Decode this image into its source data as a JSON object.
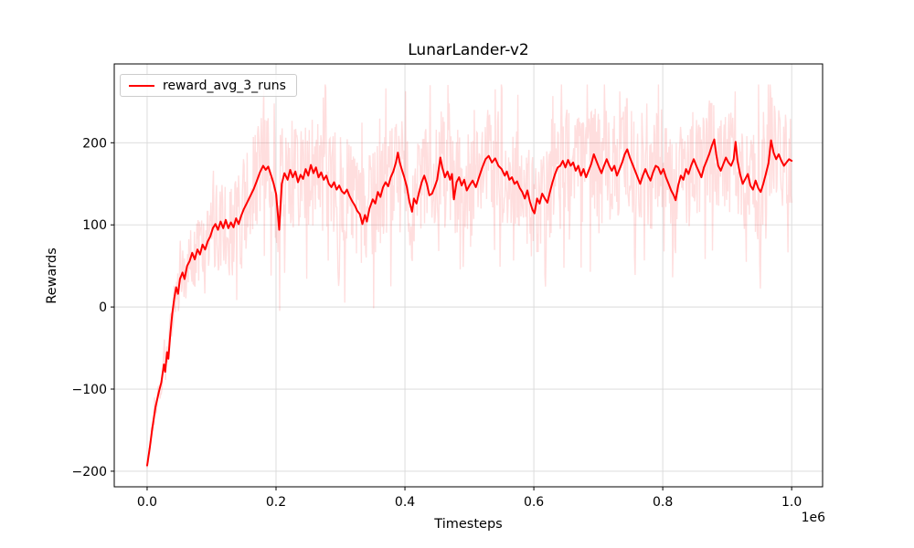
{
  "chart_data": {
    "type": "line",
    "title": "LunarLander-v2",
    "xlabel": "Timesteps",
    "ylabel": "Rewards",
    "x_offset_label": "1e6",
    "legend": [
      "reward_avg_3_runs"
    ],
    "legend_position": "upper left",
    "grid": true,
    "xlim": [
      -51000,
      1048000
    ],
    "ylim": [
      -219,
      296
    ],
    "xticks": {
      "values": [
        0,
        200000,
        400000,
        600000,
        800000,
        1000000
      ],
      "labels": [
        "0.0",
        "0.2",
        "0.4",
        "0.6",
        "0.8",
        "1.0"
      ]
    },
    "yticks": {
      "values": [
        -200,
        -100,
        0,
        100,
        200
      ],
      "labels": [
        "−200",
        "−100",
        "0",
        "100",
        "200"
      ]
    },
    "colors": {
      "line": "#ff0000",
      "raw_band": "rgba(255,0,0,0.13)",
      "grid": "#d9d9d9",
      "spine": "#000000",
      "text": "#000000",
      "legend_border": "#cccccc",
      "background": "#ffffff"
    },
    "raw_noise": {
      "seed": 13,
      "n_points": 1050,
      "base_amplitude": 6,
      "max_amplitude": 66,
      "amp_ramp_end_x": 140000,
      "spike_probability": 0.07,
      "spike_scale": 1.45,
      "clip_min": -196,
      "clip_max": 271
    },
    "series": [
      {
        "name": "reward_avg_3_runs",
        "color": "#ff0000",
        "points": [
          [
            0,
            -193
          ],
          [
            4000,
            -172
          ],
          [
            8000,
            -148
          ],
          [
            13000,
            -122
          ],
          [
            18000,
            -104
          ],
          [
            22000,
            -92
          ],
          [
            26000,
            -70
          ],
          [
            28000,
            -79
          ],
          [
            31000,
            -55
          ],
          [
            33000,
            -63
          ],
          [
            36000,
            -32
          ],
          [
            39000,
            -8
          ],
          [
            42000,
            10
          ],
          [
            45000,
            24
          ],
          [
            48000,
            16
          ],
          [
            51000,
            34
          ],
          [
            55000,
            42
          ],
          [
            58000,
            34
          ],
          [
            62000,
            50
          ],
          [
            66000,
            56
          ],
          [
            70000,
            66
          ],
          [
            74000,
            58
          ],
          [
            78000,
            70
          ],
          [
            82000,
            64
          ],
          [
            86000,
            76
          ],
          [
            90000,
            70
          ],
          [
            94000,
            80
          ],
          [
            98000,
            86
          ],
          [
            102000,
            96
          ],
          [
            106000,
            101
          ],
          [
            110000,
            94
          ],
          [
            114000,
            104
          ],
          [
            118000,
            96
          ],
          [
            122000,
            106
          ],
          [
            126000,
            96
          ],
          [
            130000,
            103
          ],
          [
            134000,
            97
          ],
          [
            138000,
            108
          ],
          [
            142000,
            101
          ],
          [
            146000,
            111
          ],
          [
            150000,
            119
          ],
          [
            155000,
            127
          ],
          [
            160000,
            135
          ],
          [
            165000,
            143
          ],
          [
            170000,
            153
          ],
          [
            175000,
            164
          ],
          [
            180000,
            172
          ],
          [
            184000,
            167
          ],
          [
            188000,
            171
          ],
          [
            192000,
            161
          ],
          [
            196000,
            151
          ],
          [
            200000,
            138
          ],
          [
            205000,
            94
          ],
          [
            209000,
            150
          ],
          [
            213000,
            163
          ],
          [
            218000,
            155
          ],
          [
            222000,
            167
          ],
          [
            226000,
            158
          ],
          [
            230000,
            165
          ],
          [
            234000,
            152
          ],
          [
            238000,
            161
          ],
          [
            242000,
            156
          ],
          [
            246000,
            168
          ],
          [
            250000,
            160
          ],
          [
            254000,
            173
          ],
          [
            258000,
            163
          ],
          [
            262000,
            170
          ],
          [
            266000,
            158
          ],
          [
            270000,
            164
          ],
          [
            274000,
            155
          ],
          [
            278000,
            160
          ],
          [
            282000,
            150
          ],
          [
            286000,
            146
          ],
          [
            290000,
            152
          ],
          [
            294000,
            143
          ],
          [
            298000,
            148
          ],
          [
            302000,
            141
          ],
          [
            306000,
            138
          ],
          [
            310000,
            143
          ],
          [
            314000,
            135
          ],
          [
            318000,
            129
          ],
          [
            322000,
            124
          ],
          [
            326000,
            117
          ],
          [
            330000,
            113
          ],
          [
            334000,
            101
          ],
          [
            338000,
            112
          ],
          [
            341000,
            104
          ],
          [
            345000,
            120
          ],
          [
            350000,
            131
          ],
          [
            354000,
            126
          ],
          [
            358000,
            140
          ],
          [
            362000,
            134
          ],
          [
            366000,
            146
          ],
          [
            370000,
            152
          ],
          [
            374000,
            147
          ],
          [
            378000,
            158
          ],
          [
            382000,
            165
          ],
          [
            386000,
            176
          ],
          [
            389000,
            188
          ],
          [
            392000,
            176
          ],
          [
            395000,
            168
          ],
          [
            399000,
            158
          ],
          [
            403000,
            146
          ],
          [
            407000,
            128
          ],
          [
            411000,
            116
          ],
          [
            414000,
            132
          ],
          [
            418000,
            126
          ],
          [
            422000,
            140
          ],
          [
            426000,
            152
          ],
          [
            430000,
            160
          ],
          [
            434000,
            150
          ],
          [
            438000,
            136
          ],
          [
            442000,
            138
          ],
          [
            446000,
            146
          ],
          [
            450000,
            155
          ],
          [
            455000,
            182
          ],
          [
            458000,
            170
          ],
          [
            462000,
            158
          ],
          [
            466000,
            165
          ],
          [
            470000,
            155
          ],
          [
            473000,
            162
          ],
          [
            476000,
            131
          ],
          [
            480000,
            152
          ],
          [
            484000,
            158
          ],
          [
            488000,
            148
          ],
          [
            492000,
            155
          ],
          [
            496000,
            142
          ],
          [
            500000,
            148
          ],
          [
            505000,
            154
          ],
          [
            510000,
            146
          ],
          [
            515000,
            158
          ],
          [
            520000,
            170
          ],
          [
            525000,
            180
          ],
          [
            530000,
            184
          ],
          [
            535000,
            176
          ],
          [
            540000,
            181
          ],
          [
            545000,
            172
          ],
          [
            550000,
            168
          ],
          [
            555000,
            160
          ],
          [
            558000,
            165
          ],
          [
            562000,
            155
          ],
          [
            566000,
            158
          ],
          [
            570000,
            150
          ],
          [
            574000,
            153
          ],
          [
            578000,
            145
          ],
          [
            582000,
            140
          ],
          [
            586000,
            132
          ],
          [
            590000,
            142
          ],
          [
            594000,
            128
          ],
          [
            598000,
            118
          ],
          [
            601000,
            114
          ],
          [
            605000,
            132
          ],
          [
            609000,
            126
          ],
          [
            613000,
            138
          ],
          [
            617000,
            132
          ],
          [
            621000,
            127
          ],
          [
            625000,
            140
          ],
          [
            629000,
            152
          ],
          [
            633000,
            162
          ],
          [
            637000,
            170
          ],
          [
            641000,
            172
          ],
          [
            645000,
            178
          ],
          [
            649000,
            170
          ],
          [
            653000,
            179
          ],
          [
            657000,
            172
          ],
          [
            661000,
            176
          ],
          [
            665000,
            166
          ],
          [
            669000,
            172
          ],
          [
            673000,
            160
          ],
          [
            677000,
            168
          ],
          [
            681000,
            158
          ],
          [
            685000,
            166
          ],
          [
            689000,
            174
          ],
          [
            693000,
            186
          ],
          [
            697000,
            178
          ],
          [
            701000,
            170
          ],
          [
            705000,
            163
          ],
          [
            709000,
            172
          ],
          [
            713000,
            180
          ],
          [
            717000,
            172
          ],
          [
            721000,
            166
          ],
          [
            725000,
            172
          ],
          [
            729000,
            160
          ],
          [
            733000,
            168
          ],
          [
            737000,
            176
          ],
          [
            741000,
            186
          ],
          [
            745000,
            192
          ],
          [
            749000,
            182
          ],
          [
            753000,
            174
          ],
          [
            757000,
            166
          ],
          [
            761000,
            158
          ],
          [
            765000,
            150
          ],
          [
            769000,
            160
          ],
          [
            773000,
            168
          ],
          [
            777000,
            160
          ],
          [
            781000,
            154
          ],
          [
            785000,
            164
          ],
          [
            789000,
            172
          ],
          [
            793000,
            170
          ],
          [
            797000,
            162
          ],
          [
            801000,
            168
          ],
          [
            805000,
            158
          ],
          [
            809000,
            150
          ],
          [
            813000,
            142
          ],
          [
            817000,
            136
          ],
          [
            820000,
            130
          ],
          [
            824000,
            148
          ],
          [
            828000,
            160
          ],
          [
            832000,
            155
          ],
          [
            836000,
            168
          ],
          [
            840000,
            162
          ],
          [
            844000,
            172
          ],
          [
            848000,
            180
          ],
          [
            852000,
            172
          ],
          [
            856000,
            165
          ],
          [
            860000,
            158
          ],
          [
            864000,
            170
          ],
          [
            868000,
            178
          ],
          [
            872000,
            186
          ],
          [
            876000,
            196
          ],
          [
            880000,
            204
          ],
          [
            883000,
            186
          ],
          [
            886000,
            172
          ],
          [
            890000,
            166
          ],
          [
            894000,
            174
          ],
          [
            898000,
            182
          ],
          [
            902000,
            176
          ],
          [
            906000,
            172
          ],
          [
            910000,
            180
          ],
          [
            913000,
            201
          ],
          [
            916000,
            178
          ],
          [
            920000,
            162
          ],
          [
            924000,
            150
          ],
          [
            928000,
            156
          ],
          [
            932000,
            162
          ],
          [
            936000,
            148
          ],
          [
            940000,
            143
          ],
          [
            944000,
            154
          ],
          [
            948000,
            145
          ],
          [
            952000,
            140
          ],
          [
            956000,
            150
          ],
          [
            960000,
            162
          ],
          [
            964000,
            175
          ],
          [
            968000,
            203
          ],
          [
            972000,
            188
          ],
          [
            976000,
            180
          ],
          [
            980000,
            186
          ],
          [
            984000,
            178
          ],
          [
            988000,
            172
          ],
          [
            992000,
            176
          ],
          [
            996000,
            180
          ],
          [
            1000000,
            178
          ]
        ]
      }
    ]
  }
}
